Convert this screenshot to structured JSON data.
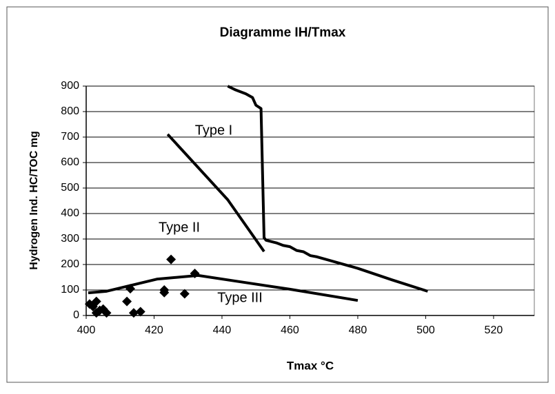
{
  "chart_data": {
    "type": "scatter",
    "title": "Diagramme IH/Tmax",
    "x_label": "Tmax °C",
    "y_label": "Hydrogen Ind. HC/TOC mg",
    "xlim": [
      400,
      532
    ],
    "ylim": [
      0,
      900
    ],
    "xticks": [
      400,
      420,
      440,
      460,
      480,
      500,
      520
    ],
    "yticks": [
      0,
      100,
      200,
      300,
      400,
      500,
      600,
      700,
      800,
      900
    ],
    "grid": true,
    "annotations": [
      "Type I",
      "Type II",
      "Type III"
    ],
    "series": [
      {
        "type": "line",
        "color": "#000000",
        "x": [
          441.7,
          444,
          447,
          449,
          450,
          451.5,
          452.4,
          453,
          456,
          458,
          460,
          462,
          464,
          466,
          468,
          480,
          490,
          500.6
        ],
        "values": [
          900,
          885,
          870,
          855,
          825,
          812,
          305,
          295,
          285,
          275,
          270,
          255,
          250,
          235,
          230,
          185,
          140,
          95
        ]
      },
      {
        "type": "line",
        "color": "#000000",
        "x": [
          424,
          441.7,
          452.4
        ],
        "values": [
          711,
          454,
          251
        ]
      },
      {
        "type": "line",
        "color": "#000000",
        "x": [
          400.6,
          406,
          421,
          433,
          444,
          460,
          480
        ],
        "values": [
          89,
          95,
          143,
          157,
          135,
          103,
          59
        ]
      },
      {
        "type": "scatter",
        "color": "#000000",
        "x": [
          401,
          402,
          403,
          403,
          404,
          405,
          406,
          412,
          413,
          414,
          416,
          423,
          423,
          425,
          429,
          432
        ],
        "values": [
          45,
          35,
          55,
          10,
          20,
          25,
          10,
          55,
          105,
          10,
          15,
          100,
          90,
          220,
          85,
          165
        ]
      }
    ]
  }
}
